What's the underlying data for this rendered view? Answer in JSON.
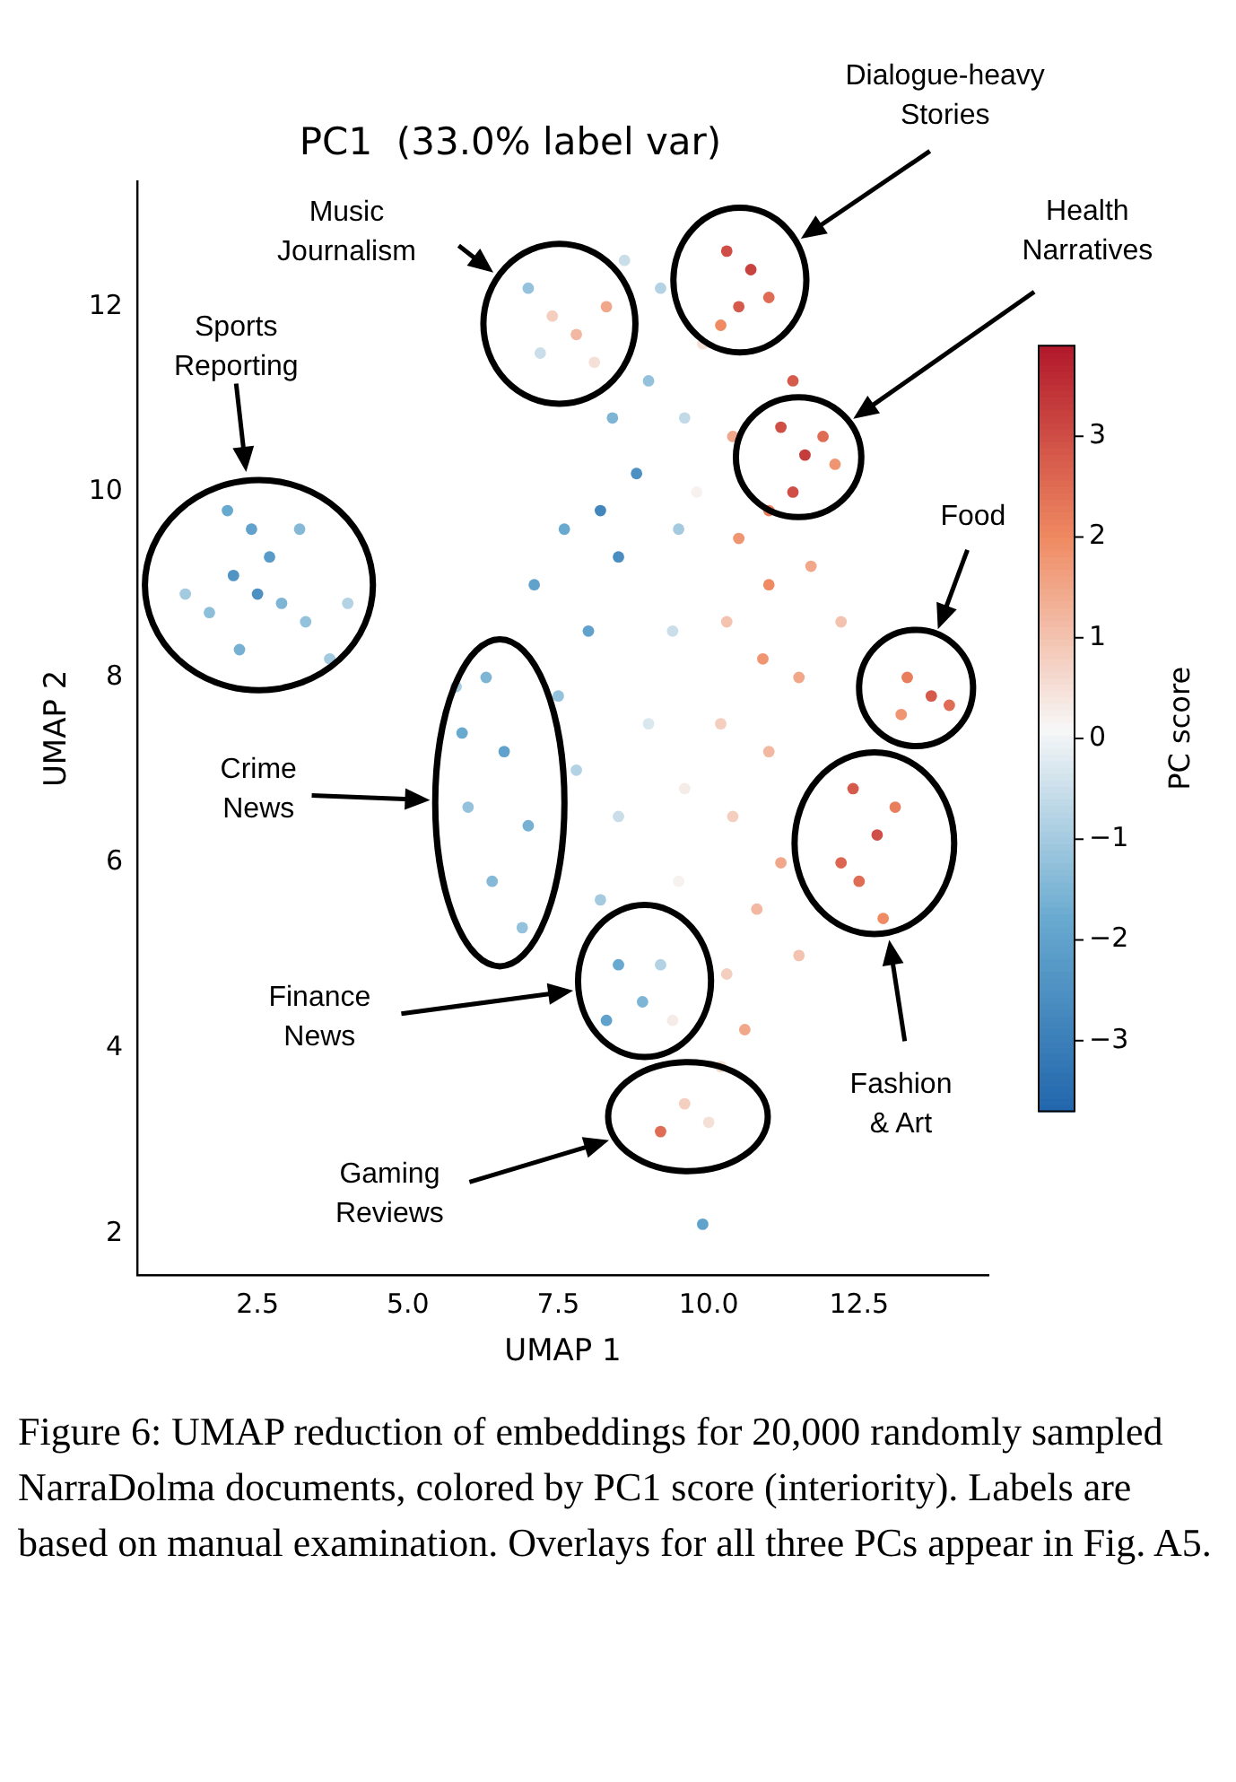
{
  "chart_data": {
    "type": "scatter",
    "title": "PC1  (33.0% label var)",
    "xlabel": "UMAP 1",
    "ylabel": "UMAP 2",
    "clabel": "PC score",
    "xlim": [
      0.5,
      14.65
    ],
    "ylim": [
      1.55,
      13.35
    ],
    "xticks": [
      {
        "value": 2.5,
        "label": "2.5"
      },
      {
        "value": 5,
        "label": "5.0"
      },
      {
        "value": 7.5,
        "label": "7.5"
      },
      {
        "value": 10,
        "label": "10.0"
      },
      {
        "value": 12.5,
        "label": "12.5"
      }
    ],
    "yticks": [
      2,
      4,
      6,
      8,
      10,
      12
    ],
    "clim": [
      -3.7,
      3.9
    ],
    "cticks": [
      -3,
      -2,
      -1,
      0,
      1,
      2,
      3
    ],
    "grid": false,
    "legend": false,
    "marker": "circle",
    "x": [
      2.0,
      2.4,
      2.7,
      2.5,
      2.9,
      3.3,
      1.3,
      1.7,
      2.2,
      3.7,
      3.2,
      2.1,
      4.0,
      7.0,
      7.4,
      7.8,
      8.1,
      7.2,
      8.3,
      8.6,
      9.2,
      9.0,
      8.4,
      8.8,
      8.2,
      8.5,
      7.6,
      7.1,
      9.5,
      9.6,
      9.9,
      9.8,
      6.3,
      5.9,
      6.6,
      6.0,
      7.0,
      6.4,
      6.9,
      5.8,
      7.5,
      8.0,
      7.8,
      8.5,
      8.2,
      9.0,
      9.4,
      9.6,
      9.5,
      8.5,
      8.9,
      9.2,
      8.3,
      9.4,
      9.2,
      9.6,
      10.0,
      9.9,
      10.3,
      10.7,
      10.5,
      11.0,
      10.2,
      11.4,
      11.2,
      11.6,
      11.4,
      11.9,
      11.0,
      12.1,
      10.4,
      10.5,
      11.0,
      11.7,
      10.9,
      11.5,
      12.2,
      10.3,
      10.2,
      11.0,
      10.4,
      11.2,
      10.8,
      10.3,
      10.6,
      10.2,
      11.5,
      12.4,
      12.8,
      12.5,
      13.1,
      12.9,
      12.2,
      13.3,
      13.7,
      14.0,
      13.2
    ],
    "values": [
      9.8,
      9.6,
      9.3,
      8.9,
      8.8,
      8.6,
      8.9,
      8.7,
      8.3,
      8.2,
      9.6,
      9.1,
      8.8,
      12.2,
      11.9,
      11.7,
      11.4,
      11.5,
      12.0,
      12.5,
      12.2,
      11.2,
      10.8,
      10.2,
      9.8,
      9.3,
      9.6,
      9.0,
      9.6,
      10.8,
      11.6,
      10.0,
      8.0,
      7.4,
      7.2,
      6.6,
      6.4,
      5.8,
      5.3,
      7.9,
      7.8,
      8.5,
      7.0,
      6.5,
      5.6,
      7.5,
      8.5,
      6.8,
      5.8,
      4.9,
      4.5,
      4.9,
      4.3,
      4.3,
      3.1,
      3.4,
      3.2,
      2.1,
      12.6,
      12.4,
      12.0,
      12.1,
      11.8,
      11.2,
      10.7,
      10.4,
      10.0,
      10.6,
      9.8,
      10.3,
      10.6,
      9.5,
      9.0,
      9.2,
      8.2,
      8.0,
      8.6,
      8.6,
      7.5,
      7.2,
      6.5,
      6.0,
      5.5,
      4.8,
      4.2,
      3.8,
      5.0,
      6.8,
      6.3,
      5.8,
      6.6,
      5.4,
      6.0,
      8.0,
      7.8,
      7.7,
      7.6
    ],
    "cvalues": [
      -1.8,
      -2,
      -2.2,
      -2.5,
      -1.5,
      -1.2,
      -1,
      -1.3,
      -1.6,
      -1.0,
      -1.4,
      -2.4,
      -0.8,
      -1.2,
      0.8,
      1.2,
      0.5,
      -0.5,
      1.5,
      -0.5,
      -0.8,
      -1.2,
      -1.5,
      -2.5,
      -2.8,
      -2.6,
      -1.8,
      -2.0,
      -1.0,
      -0.6,
      0.5,
      0.2,
      -1.5,
      -1.8,
      -2.0,
      -1.2,
      -1.6,
      -1.4,
      -1.2,
      -1.0,
      -1.2,
      -2.0,
      -0.8,
      -0.5,
      -1.0,
      -0.3,
      -0.5,
      0.3,
      0.2,
      -1.8,
      -1.5,
      -0.8,
      -2.0,
      0.3,
      2.5,
      0.8,
      0.5,
      -2.0,
      3.0,
      3.2,
      2.8,
      2.5,
      2.0,
      2.8,
      3.0,
      3.3,
      3.0,
      2.5,
      2.2,
      1.8,
      1.5,
      1.8,
      2.0,
      1.5,
      1.8,
      1.5,
      1.0,
      1.0,
      0.8,
      1.2,
      0.8,
      1.5,
      1.2,
      0.8,
      1.5,
      0.6,
      1.0,
      2.8,
      3.0,
      2.5,
      2.2,
      2.0,
      2.6,
      2.2,
      2.8,
      2.5,
      1.8
    ],
    "annotations": [
      "Music\nJournalism",
      "Dialogue-heavy\nStories",
      "Health\nNarratives",
      "Sports\nReporting",
      "Food",
      "Crime\nNews",
      "Fashion\n& Art",
      "Finance\nNews",
      "Gaming\nReviews",
      "Figure 6: UMAP reduction of embeddings for 20,000 randomly sampled NarraDolma documents, colored by PC1 score (interiority). Labels are based on manual examination. Overlays for all three PCs appear in Fig. A5."
    ]
  }
}
